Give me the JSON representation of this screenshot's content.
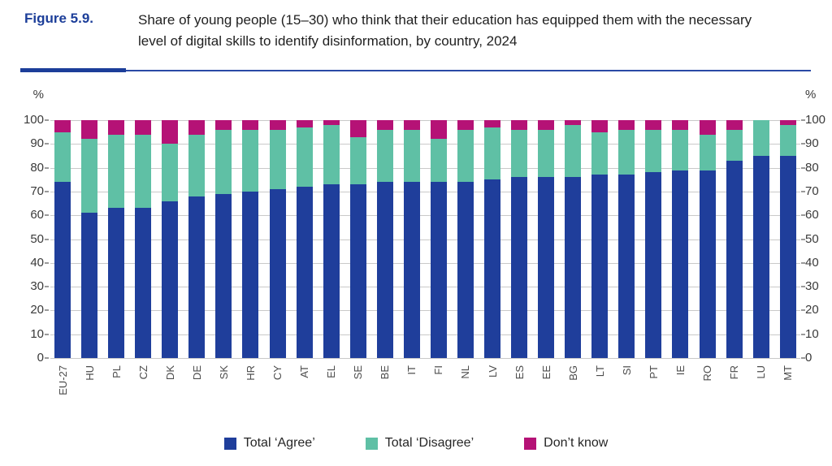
{
  "figure": {
    "label": "Figure 5.9.",
    "title": "Share of young people (15–30) who think that their education has equipped them with the necessary level of digital skills to identify disinformation, by country, 2024"
  },
  "axis": {
    "unit_left": "%",
    "unit_right": "%"
  },
  "colors": {
    "agree": "#1f3e9b",
    "disagree": "#5fc0a5",
    "dont_know": "#b51276",
    "figure_label_blue": "#1c3e99",
    "rule_blue": "#2a4aa5",
    "gridline": "#c9c9c9",
    "axis_text": "#3a3a3a",
    "xlabel_text": "#4c4c4c"
  },
  "chart_data": {
    "type": "bar",
    "stacked": true,
    "title": "Share of young people (15–30) who think that their education has equipped them with the necessary level of digital skills to identify disinformation, by country, 2024",
    "ylabel": "%",
    "ylim": [
      0,
      100
    ],
    "yticks": [
      0,
      10,
      20,
      30,
      40,
      50,
      60,
      70,
      80,
      90,
      100
    ],
    "grid": true,
    "legend_position": "bottom",
    "categories": [
      "EU-27",
      "HU",
      "PL",
      "CZ",
      "DK",
      "DE",
      "SK",
      "HR",
      "CY",
      "AT",
      "EL",
      "SE",
      "BE",
      "IT",
      "FI",
      "NL",
      "LV",
      "ES",
      "EE",
      "BG",
      "LT",
      "SI",
      "PT",
      "IE",
      "RO",
      "FR",
      "LU",
      "MT"
    ],
    "series": [
      {
        "name": "Total ‘Agree’",
        "key": "agree",
        "color": "#1f3e9b",
        "values": [
          74,
          61,
          63,
          63,
          66,
          68,
          69,
          70,
          71,
          72,
          73,
          73,
          74,
          74,
          74,
          74,
          75,
          76,
          76,
          76,
          77,
          77,
          78,
          79,
          79,
          83,
          85,
          85
        ]
      },
      {
        "name": "Total ‘Disagree’",
        "key": "disagree",
        "color": "#5fc0a5",
        "values": [
          21,
          31,
          31,
          31,
          24,
          26,
          27,
          26,
          25,
          25,
          25,
          20,
          22,
          22,
          18,
          22,
          22,
          20,
          20,
          22,
          18,
          19,
          18,
          17,
          15,
          13,
          15,
          13
        ]
      },
      {
        "name": "Don’t know",
        "key": "dont-know",
        "color": "#b51276",
        "values": [
          5,
          8,
          6,
          6,
          10,
          6,
          4,
          4,
          4,
          3,
          2,
          7,
          4,
          4,
          8,
          4,
          3,
          4,
          4,
          2,
          5,
          4,
          4,
          4,
          6,
          4,
          0,
          2
        ]
      }
    ]
  }
}
